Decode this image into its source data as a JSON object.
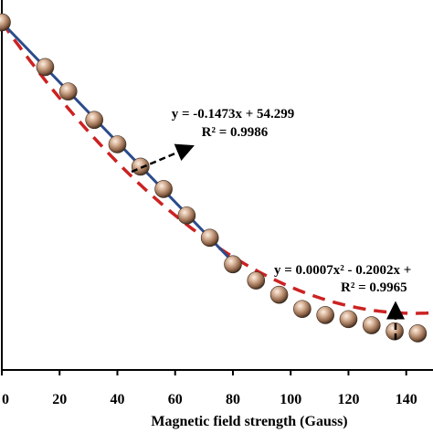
{
  "chart_data": {
    "type": "scatter",
    "title": "",
    "xlabel": "Magnetic field strength (Gauss)",
    "ylabel": "",
    "xlim": [
      0,
      148
    ],
    "x_ticks": [
      "0",
      "20",
      "40",
      "60",
      "80",
      "100",
      "120",
      "140"
    ],
    "x_tick_values": [
      0,
      20,
      40,
      60,
      80,
      100,
      120,
      140
    ],
    "series": [
      {
        "marker": "sphere",
        "color": "#b98f72",
        "x": [
          0,
          15,
          23,
          32,
          40,
          48,
          56,
          64,
          72,
          80,
          88,
          96,
          104,
          112,
          120,
          128,
          136,
          144
        ],
        "y": [
          54.3,
          52.1,
          50.9,
          49.5,
          48.3,
          47.2,
          46.1,
          44.8,
          43.7,
          42.4,
          41.6,
          40.9,
          40.2,
          39.9,
          39.7,
          39.4,
          39.1,
          39.0
        ]
      }
    ],
    "fits": [
      {
        "kind": "linear",
        "color": "#2b4c8c",
        "style": "solid",
        "x_range": [
          0,
          80
        ],
        "equation": "y = -0.1473x + 54.299",
        "r2": "R² = 0.9986"
      },
      {
        "kind": "quadratic",
        "color": "#cc2222",
        "style": "dashed",
        "x_range": [
          0,
          148
        ],
        "equation": "y = 0.0007x² - 0.2002x +",
        "r2": "R² = 0.9965"
      }
    ]
  }
}
